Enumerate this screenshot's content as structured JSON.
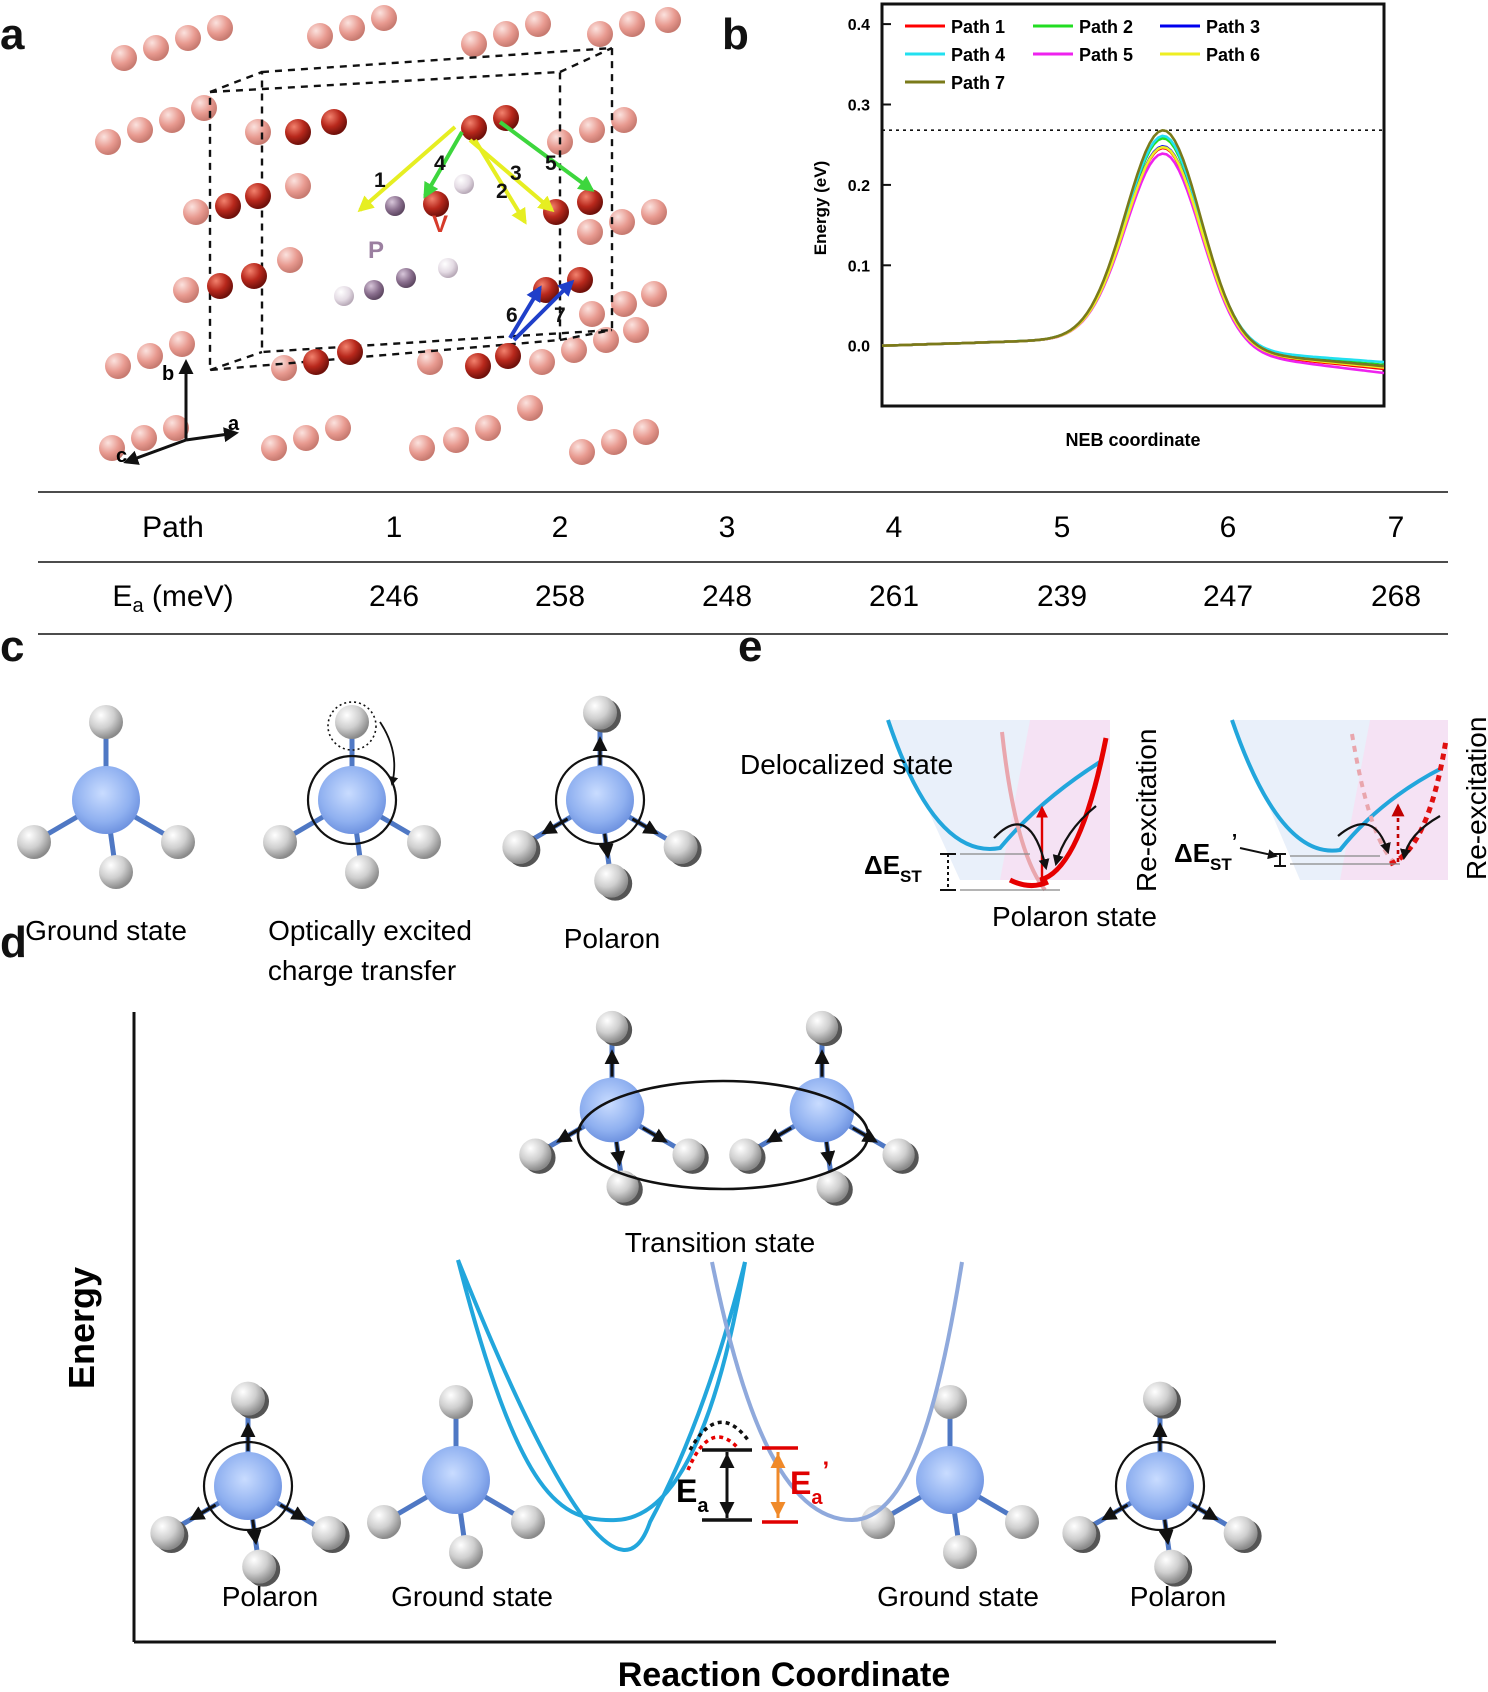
{
  "panels": {
    "a": "a",
    "b": "b",
    "c": "c",
    "d": "d",
    "e": "e"
  },
  "panel_a": {
    "axes": {
      "a": "a",
      "b": "b",
      "c": "c"
    },
    "atoms": {
      "V": "V",
      "P": "P"
    },
    "path_numbers": [
      "1",
      "2",
      "3",
      "4",
      "5",
      "6",
      "7"
    ],
    "colors": {
      "v_atom": "#b8281c",
      "host_atom": "#e89a90",
      "p_dark": "#8a6f8e",
      "p_light": "#dcd2dc",
      "yellow": "#e6ee22",
      "green": "#3dd63d",
      "blue": "#1f3fc9"
    }
  },
  "chart_data": {
    "type": "line",
    "title": "",
    "xlabel": "NEB coordinate",
    "ylabel": "Energy (eV)",
    "ylim": [
      -0.075,
      0.425
    ],
    "yticks": [
      "0.0",
      "0.1",
      "0.2",
      "0.3",
      "0.4"
    ],
    "reference_line": 0.268,
    "x": [
      0.0,
      0.1,
      0.2,
      0.3,
      0.4,
      0.45,
      0.5,
      0.55,
      0.6,
      0.7,
      0.8,
      0.9,
      1.0
    ],
    "series": [
      {
        "name": "Path 1",
        "color": "#ff0000",
        "peak": 0.246,
        "end": -0.034
      },
      {
        "name": "Path 2",
        "color": "#22dd22",
        "peak": 0.258,
        "end": -0.028
      },
      {
        "name": "Path 3",
        "color": "#0000ee",
        "peak": 0.248,
        "end": -0.03
      },
      {
        "name": "Path 4",
        "color": "#22e0f0",
        "peak": 0.261,
        "end": -0.024
      },
      {
        "name": "Path 5",
        "color": "#ee22ee",
        "peak": 0.239,
        "end": -0.04
      },
      {
        "name": "Path 6",
        "color": "#eeee22",
        "peak": 0.247,
        "end": -0.032
      },
      {
        "name": "Path 7",
        "color": "#7a7a1a",
        "peak": 0.268,
        "end": -0.03
      }
    ]
  },
  "table": {
    "header_label": "Path",
    "row_label_main": "E",
    "row_label_sub": "a",
    "row_label_unit": " (meV)",
    "paths": [
      "1",
      "2",
      "3",
      "4",
      "5",
      "6",
      "7"
    ],
    "values": [
      "246",
      "258",
      "248",
      "261",
      "239",
      "247",
      "268"
    ]
  },
  "panel_c": {
    "captions": [
      "Ground state",
      "Optically excited",
      "charge transfer",
      "Polaron"
    ]
  },
  "panel_e": {
    "delocalized": "Delocalized state",
    "polaron": "Polaron state",
    "reexcitation": "Re-excitation",
    "dest_main": "ΔE",
    "dest_sub": "ST",
    "dest_prime": "’"
  },
  "panel_d": {
    "ylabel": "Energy",
    "xlabel": "Reaction Coordinate",
    "transition": "Transition state",
    "captions": [
      "Polaron",
      "Ground state",
      "Ground state",
      "Polaron"
    ],
    "ea_main": "E",
    "ea_sub": "a",
    "ea_prime": "’"
  }
}
